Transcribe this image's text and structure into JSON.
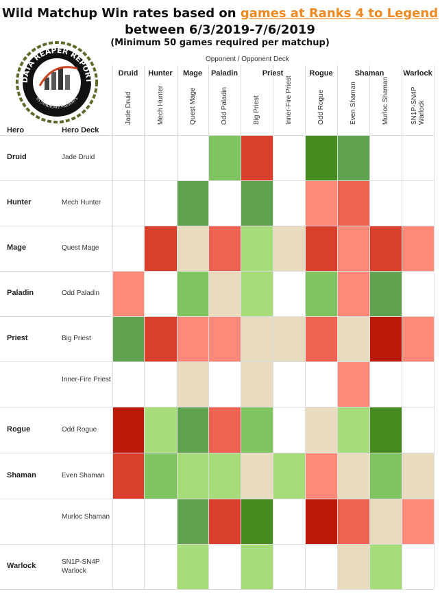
{
  "title": {
    "prefix": "Wild Matchup Win rates based on ",
    "link": "games at Ranks 4 to Legend",
    "line2": "between 6/3/2019-7/6/2019",
    "line3": "(Minimum 50 games required per matchup)"
  },
  "logo": {
    "text": "DATA REAPER REPORT",
    "sub": "VS SYNDICATE PRESENTS"
  },
  "headers": {
    "opponent": "Opponent  /  Opponent Deck",
    "hero": "Hero",
    "hero_deck": "Hero Deck"
  },
  "colors": {
    "strong_loss": "#bc1a08",
    "loss": "#d9402b",
    "mild_loss": "#ef6350",
    "slight_loss": "#fd8a78",
    "even": "#e8dbbe",
    "slight_win": "#a7dc7a",
    "win": "#7fc460",
    "strong_win": "#5fa350",
    "dominant_win": "#468b20",
    "none": "#ffffff"
  },
  "chart_data": {
    "type": "heatmap",
    "title": "Wild Matchup Win rates based on games at Ranks 4 to Legend between 6/3/2019-7/6/2019",
    "subtitle": "(Minimum 50 games required per matchup)",
    "col_classes": [
      {
        "name": "Druid",
        "span": 1
      },
      {
        "name": "Hunter",
        "span": 1
      },
      {
        "name": "Mage",
        "span": 1
      },
      {
        "name": "Paladin",
        "span": 1
      },
      {
        "name": "Priest",
        "span": 2
      },
      {
        "name": "Rogue",
        "span": 1
      },
      {
        "name": "Shaman",
        "span": 2
      },
      {
        "name": "Warlock",
        "span": 1
      }
    ],
    "col_decks": [
      "Jade Druid",
      "Mech Hunter",
      "Quest Mage",
      "Odd Paladin",
      "Big Priest",
      "Inner-Fire Priest",
      "Odd Rogue",
      "Even Shaman",
      "Murloc Shaman",
      "SN1P-SN4P Warlock"
    ],
    "rows": [
      {
        "hero": "Druid",
        "deck": "Jade Druid",
        "cells": [
          "none",
          "none",
          "none",
          "win",
          "loss",
          "none",
          "dominant_win",
          "strong_win",
          "none",
          "none"
        ]
      },
      {
        "hero": "Hunter",
        "deck": "Mech Hunter",
        "cells": [
          "none",
          "none",
          "strong_win",
          "none",
          "strong_win",
          "none",
          "slight_loss",
          "mild_loss",
          "none",
          "none"
        ]
      },
      {
        "hero": "Mage",
        "deck": "Quest Mage",
        "cells": [
          "none",
          "loss",
          "even",
          "mild_loss",
          "slight_win",
          "even",
          "loss",
          "slight_loss",
          "loss",
          "slight_loss"
        ]
      },
      {
        "hero": "Paladin",
        "deck": "Odd Paladin",
        "cells": [
          "slight_loss",
          "none",
          "win",
          "even",
          "slight_win",
          "none",
          "win",
          "slight_loss",
          "strong_win",
          "none"
        ]
      },
      {
        "hero": "Priest",
        "deck": "Big Priest",
        "cells": [
          "strong_win",
          "loss",
          "slight_loss",
          "slight_loss",
          "even",
          "even",
          "mild_loss",
          "even",
          "strong_loss",
          "slight_loss"
        ]
      },
      {
        "hero": "",
        "deck": "Inner-Fire Priest",
        "cells": [
          "none",
          "none",
          "even",
          "none",
          "even",
          "none",
          "none",
          "slight_loss",
          "none",
          "none"
        ]
      },
      {
        "hero": "Rogue",
        "deck": "Odd Rogue",
        "cells": [
          "strong_loss",
          "slight_win",
          "strong_win",
          "mild_loss",
          "win",
          "none",
          "even",
          "slight_win",
          "dominant_win",
          "none"
        ]
      },
      {
        "hero": "Shaman",
        "deck": "Even Shaman",
        "cells": [
          "loss",
          "win",
          "slight_win",
          "slight_win",
          "even",
          "slight_win",
          "slight_loss",
          "even",
          "win",
          "even"
        ]
      },
      {
        "hero": "",
        "deck": "Murloc Shaman",
        "cells": [
          "none",
          "none",
          "strong_win",
          "loss",
          "dominant_win",
          "none",
          "strong_loss",
          "mild_loss",
          "even",
          "slight_loss"
        ]
      },
      {
        "hero": "Warlock",
        "deck": "SN1P-SN4P Warlock",
        "cells": [
          "none",
          "none",
          "slight_win",
          "none",
          "slight_win",
          "none",
          "none",
          "even",
          "slight_win",
          "none"
        ]
      }
    ]
  }
}
